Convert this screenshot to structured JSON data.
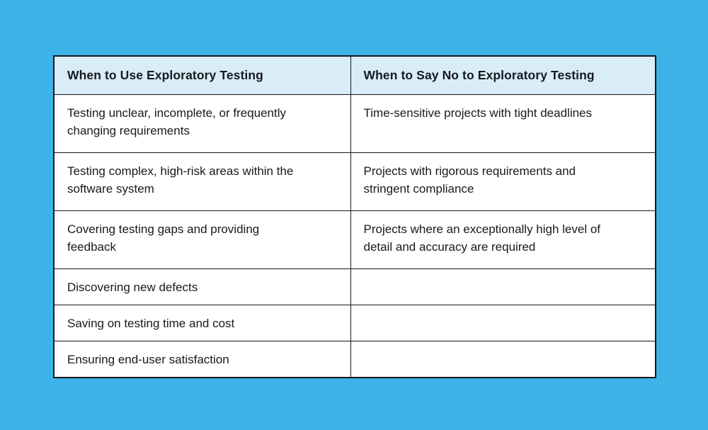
{
  "page": {
    "background_color": "#3db4e8"
  },
  "table": {
    "border_color": "#15171c",
    "header_background": "#d9edf9",
    "body_background": "#ffffff",
    "columns": [
      {
        "header": "When to Use Exploratory Testing"
      },
      {
        "header": "When to Say No to Exploratory Testing"
      }
    ],
    "rows": [
      {
        "left": "Testing unclear, incomplete, or frequently\nchanging requirements",
        "right": "Time-sensitive projects with tight deadlines"
      },
      {
        "left": "Testing complex, high-risk areas within the\nsoftware system",
        "right": "Projects with rigorous requirements and\nstringent compliance"
      },
      {
        "left": "Covering testing gaps and providing\nfeedback",
        "right": "Projects where an exceptionally high level of\ndetail and accuracy are required"
      },
      {
        "left": "Discovering new defects",
        "right": ""
      },
      {
        "left": "Saving on testing time and cost",
        "right": ""
      },
      {
        "left": "Ensuring end-user satisfaction",
        "right": ""
      }
    ]
  }
}
